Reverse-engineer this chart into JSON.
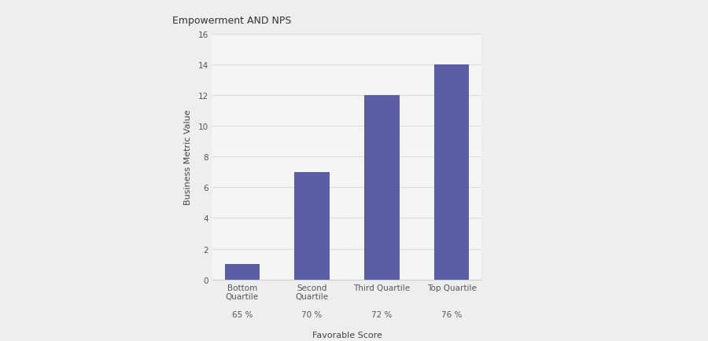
{
  "title": "Empowerment AND NPS",
  "categories": [
    "Bottom\nQuartile",
    "Second\nQuartile",
    "Third Quartile",
    "Top Quartile"
  ],
  "favorable_scores": [
    "65 %",
    "70 %",
    "72 %",
    "76 %"
  ],
  "values": [
    1,
    7,
    12,
    14
  ],
  "bar_color": "#5B5EA6",
  "xlabel": "Favorable Score",
  "ylabel": "Business Metric Value",
  "ylim": [
    0,
    16
  ],
  "yticks": [
    0,
    2,
    4,
    6,
    8,
    10,
    12,
    14,
    16
  ],
  "background_color": "#eeeeee",
  "plot_bg_color": "#f5f5f5",
  "title_fontsize": 9,
  "axis_label_fontsize": 8,
  "tick_fontsize": 7.5
}
